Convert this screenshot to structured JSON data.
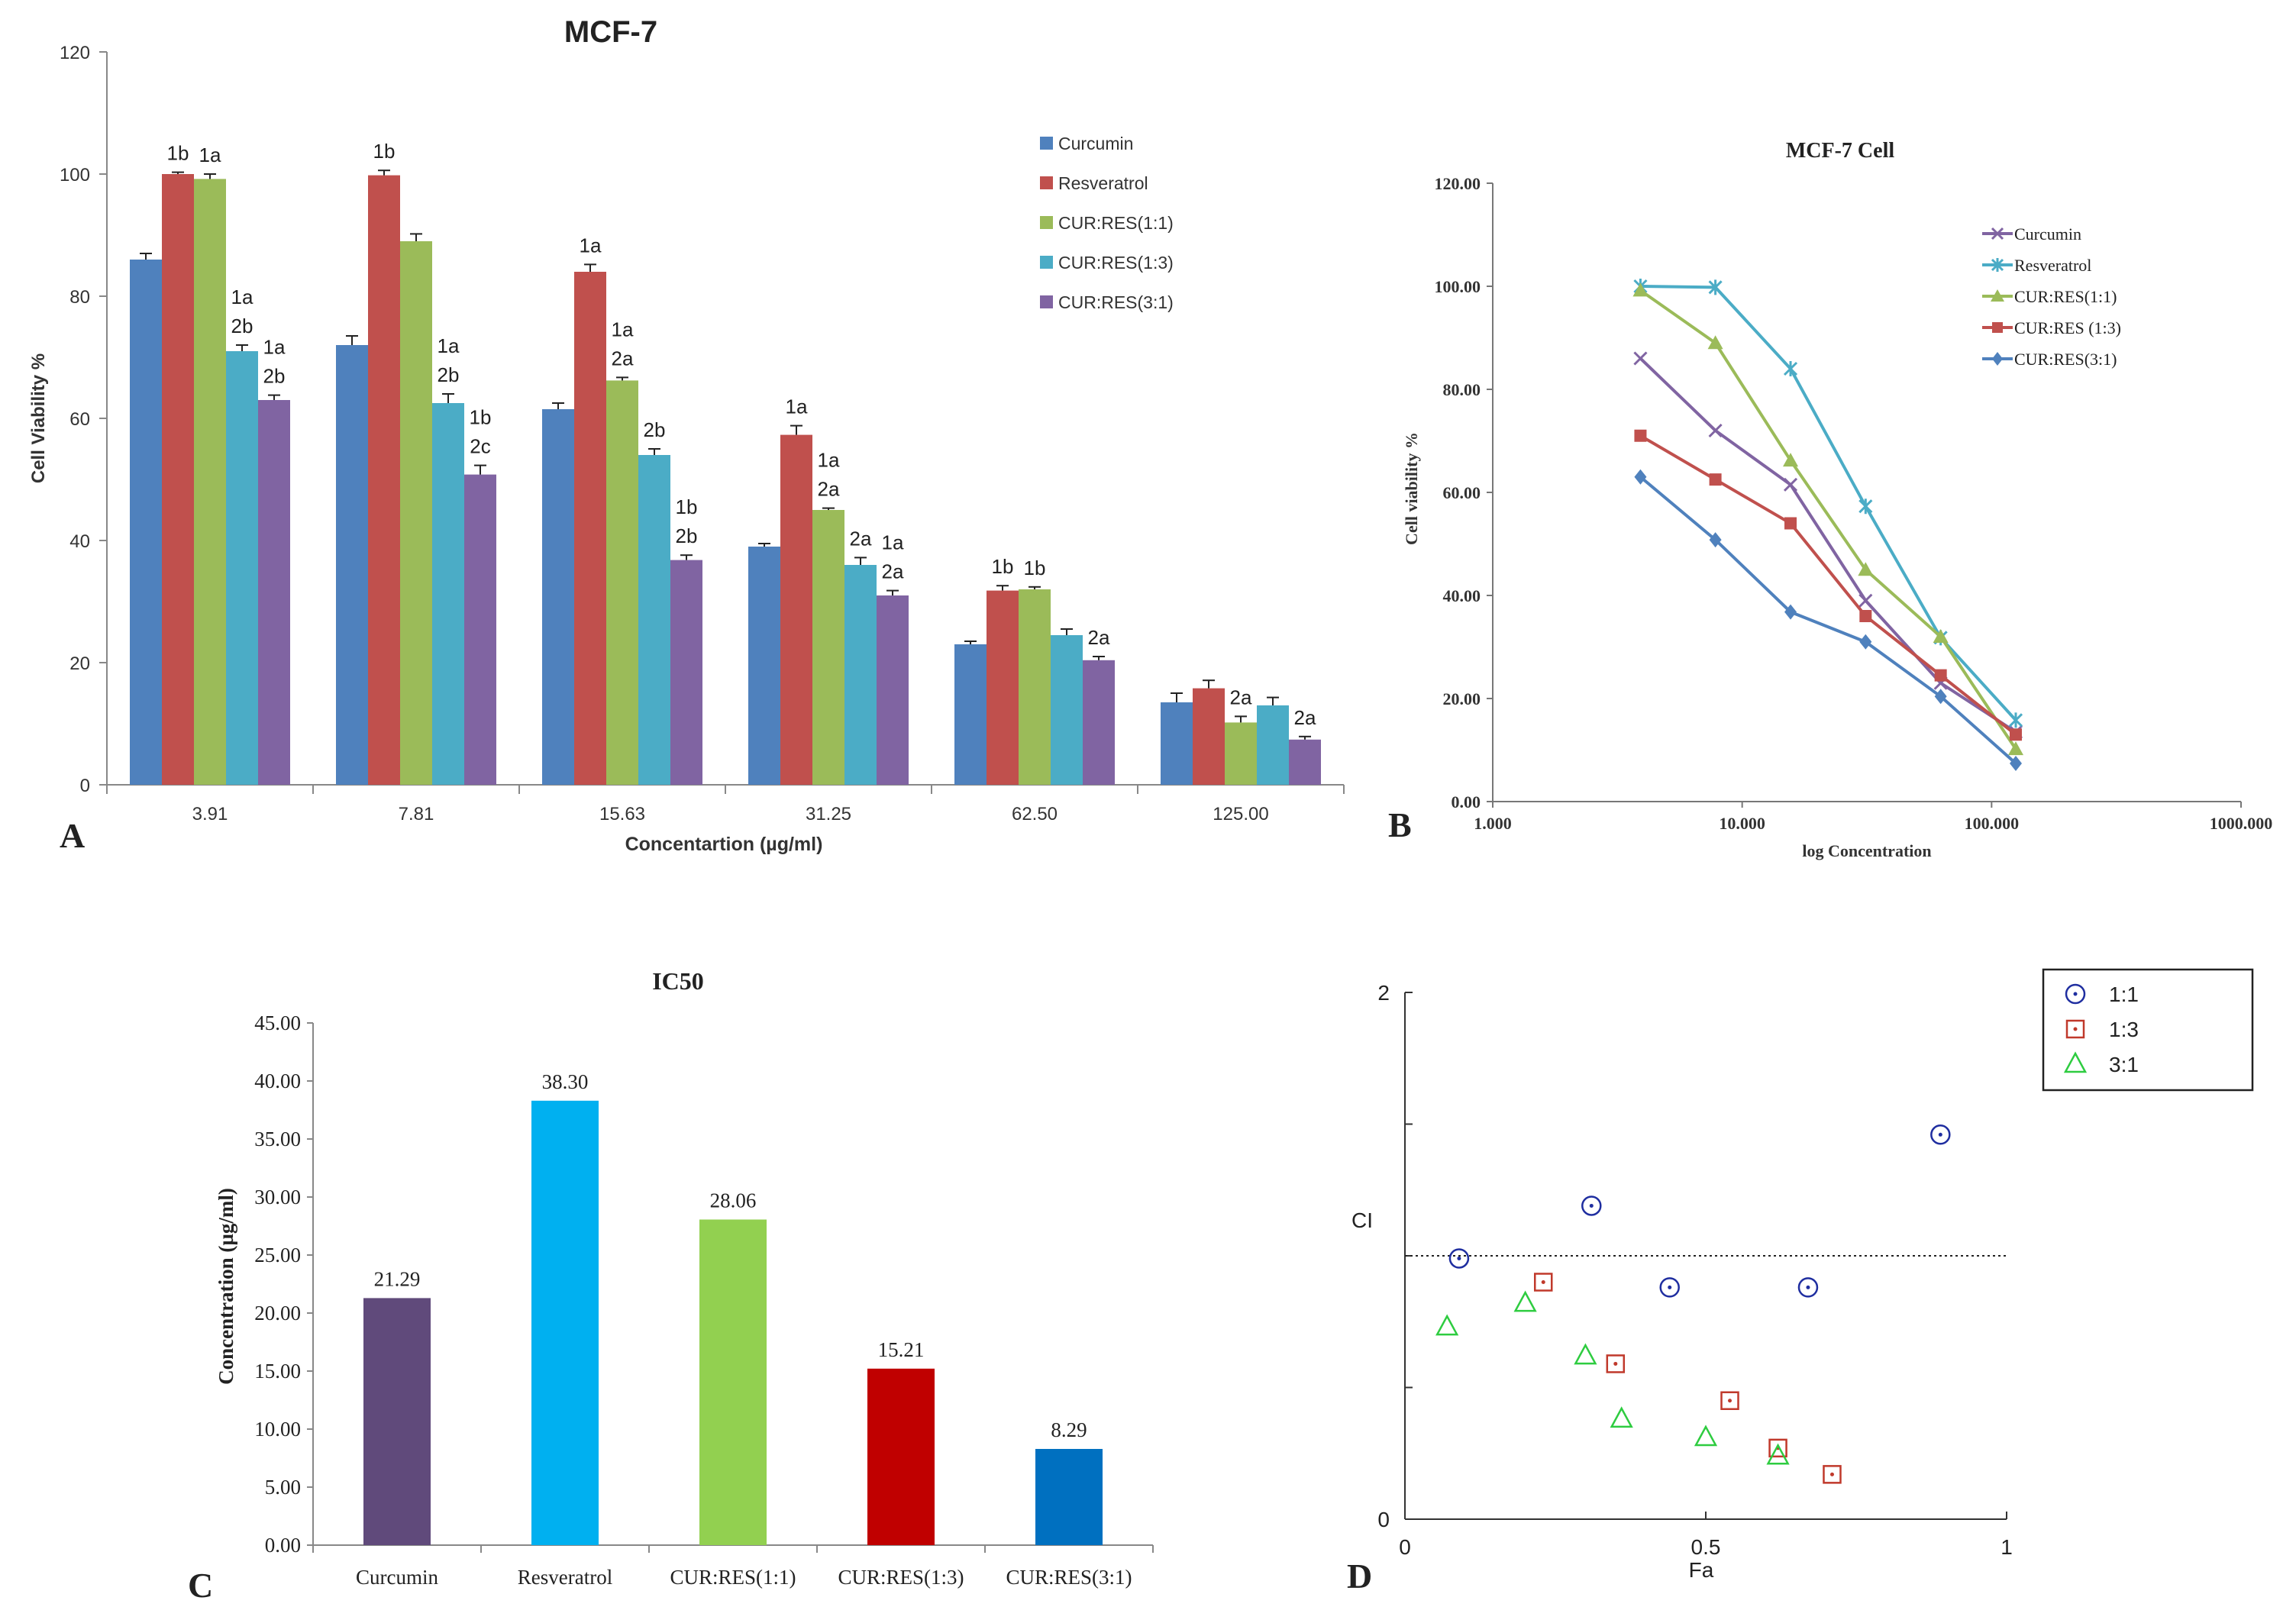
{
  "panel_letters": {
    "a": "A",
    "b": "B",
    "c": "C",
    "d": "D"
  },
  "colors": {
    "curcumin": "#4f81bd",
    "resveratrol": "#c0504d",
    "cur_res_1_1": "#9bbb59",
    "cur_res_1_3": "#4bacc6",
    "cur_res_3_1": "#8064a2",
    "b_curcumin": "#8064a2",
    "b_resveratrol": "#4bacc6",
    "b_1_1": "#9bbb59",
    "b_1_3": "#c0504d",
    "b_3_1": "#4f81bd",
    "c_curcumin": "#604a7b",
    "c_resveratrol": "#00b0f0",
    "c_1_1": "#92d050",
    "c_1_3": "#c00000",
    "c_3_1": "#0070c0",
    "d_1_1": "#1f2ea0",
    "d_1_3": "#c0392b",
    "d_3_1": "#2ecc40"
  },
  "chart_data": [
    {
      "panel": "A",
      "type": "bar",
      "title": "MCF-7",
      "xlabel": "Concentartion (µg/ml)",
      "ylabel": "Cell Viability %",
      "ylim": [
        0,
        120
      ],
      "yticks": [
        "0",
        "20",
        "40",
        "60",
        "80",
        "100",
        "120"
      ],
      "categories": [
        "3.91",
        "7.81",
        "15.63",
        "31.25",
        "62.50",
        "125.00"
      ],
      "legend_position": "top-right",
      "series": [
        {
          "name": "Curcumin",
          "color_key": "curcumin",
          "values": [
            86,
            72,
            61.5,
            39,
            23,
            13.5
          ],
          "errors": [
            1,
            1.5,
            1,
            0.5,
            0.5,
            1.5
          ],
          "labels": [
            "",
            "",
            "",
            "",
            "",
            ""
          ]
        },
        {
          "name": "Resveratrol",
          "color_key": "resveratrol",
          "values": [
            100,
            99.8,
            84,
            57.3,
            31.8,
            15.8
          ],
          "errors": [
            0.3,
            0.8,
            1.2,
            1.5,
            0.8,
            1.3
          ],
          "labels": [
            "1b",
            "1b",
            "1a",
            "1a",
            "1b",
            ""
          ]
        },
        {
          "name": "CUR:RES(1:1)",
          "color_key": "cur_res_1_1",
          "values": [
            99.2,
            89,
            66.2,
            45,
            32,
            10.2
          ],
          "errors": [
            0.8,
            1.2,
            0.5,
            0.3,
            0.4,
            1
          ],
          "labels": [
            "1a",
            "",
            "1a|2a",
            "1a|2a",
            "1b",
            "2a"
          ]
        },
        {
          "name": "CUR:RES(1:3)",
          "color_key": "cur_res_1_3",
          "values": [
            71,
            62.5,
            54,
            36,
            24.5,
            13
          ],
          "errors": [
            1,
            1.5,
            1,
            1.2,
            1,
            1.3
          ],
          "labels": [
            "1a|2b",
            "1a|2b",
            "2b",
            "2a",
            "",
            ""
          ]
        },
        {
          "name": "CUR:RES(3:1)",
          "color_key": "cur_res_3_1",
          "values": [
            63,
            50.8,
            36.8,
            31,
            20.4,
            7.4
          ],
          "errors": [
            0.8,
            1.5,
            0.8,
            0.8,
            0.6,
            0.5
          ],
          "labels": [
            "1a|2b",
            "1b|2c",
            "1b|2b",
            "1a|2a",
            "2a",
            "2a"
          ]
        }
      ]
    },
    {
      "panel": "B",
      "type": "line",
      "title": "MCF-7 Cell",
      "xlabel": "log Concentration",
      "ylabel": "Cell viability %",
      "xscale": "log",
      "xlim": [
        1,
        1000
      ],
      "ylim": [
        0,
        120
      ],
      "xticks": [
        "1.000",
        "10.000",
        "100.000",
        "1000.000"
      ],
      "yticks": [
        "0.00",
        "20.00",
        "40.00",
        "60.00",
        "80.00",
        "100.00",
        "120.00"
      ],
      "x": [
        3.91,
        7.81,
        15.63,
        31.25,
        62.5,
        125
      ],
      "legend_position": "top-right",
      "series": [
        {
          "name": "Curcumin",
          "marker": "x",
          "color_key": "b_curcumin",
          "values": [
            86,
            72,
            61.5,
            39,
            23,
            13.5
          ]
        },
        {
          "name": "Resveratrol",
          "marker": "star",
          "color_key": "b_resveratrol",
          "values": [
            100,
            99.8,
            84,
            57.3,
            31.8,
            15.8
          ]
        },
        {
          "name": "CUR:RES(1:1)",
          "marker": "triangle",
          "color_key": "b_1_1",
          "values": [
            99.2,
            89,
            66.2,
            45,
            32,
            10.2
          ]
        },
        {
          "name": "CUR:RES (1:3)",
          "marker": "square",
          "color_key": "b_1_3",
          "values": [
            71,
            62.5,
            54,
            36,
            24.5,
            13
          ]
        },
        {
          "name": "CUR:RES(3:1)",
          "marker": "diamond",
          "color_key": "b_3_1",
          "values": [
            63,
            50.8,
            36.8,
            31,
            20.4,
            7.4
          ]
        }
      ]
    },
    {
      "panel": "C",
      "type": "bar",
      "title": "IC50",
      "ylabel": "Concentration  (µg/ml)",
      "ylim": [
        0,
        45
      ],
      "yticks": [
        "0.00",
        "5.00",
        "10.00",
        "15.00",
        "20.00",
        "25.00",
        "30.00",
        "35.00",
        "40.00",
        "45.00"
      ],
      "categories": [
        "Curcumin",
        "Resveratrol",
        "CUR:RES(1:1)",
        "CUR:RES(1:3)",
        "CUR:RES(3:1)"
      ],
      "values": [
        21.29,
        38.3,
        28.06,
        15.21,
        8.29
      ],
      "value_labels": [
        "21.29",
        "38.30",
        "28.06",
        "15.21",
        "8.29"
      ],
      "color_keys": [
        "c_curcumin",
        "c_resveratrol",
        "c_1_1",
        "c_1_3",
        "c_3_1"
      ]
    },
    {
      "panel": "D",
      "type": "scatter",
      "xlabel": "Fa",
      "ylabel": "CI",
      "xlim": [
        0,
        1
      ],
      "ylim": [
        0,
        2
      ],
      "xticks": [
        "0",
        "0.5",
        "1"
      ],
      "yticks": [
        "0",
        "2"
      ],
      "reference_line": 1,
      "legend_position": "top-right",
      "series": [
        {
          "name": "1:1",
          "marker": "circle",
          "color_key": "d_1_1",
          "points": [
            [
              0.09,
              0.99
            ],
            [
              0.31,
              1.19
            ],
            [
              0.44,
              0.88
            ],
            [
              0.67,
              0.88
            ],
            [
              0.89,
              1.46
            ]
          ]
        },
        {
          "name": "1:3",
          "marker": "square",
          "color_key": "d_1_3",
          "points": [
            [
              0.23,
              0.9
            ],
            [
              0.35,
              0.59
            ],
            [
              0.54,
              0.45
            ],
            [
              0.62,
              0.27
            ],
            [
              0.71,
              0.17
            ]
          ]
        },
        {
          "name": "3:1",
          "marker": "triangle",
          "color_key": "d_3_1",
          "points": [
            [
              0.07,
              0.73
            ],
            [
              0.2,
              0.82
            ],
            [
              0.3,
              0.62
            ],
            [
              0.36,
              0.38
            ],
            [
              0.5,
              0.31
            ],
            [
              0.62,
              0.24
            ]
          ]
        }
      ]
    }
  ]
}
